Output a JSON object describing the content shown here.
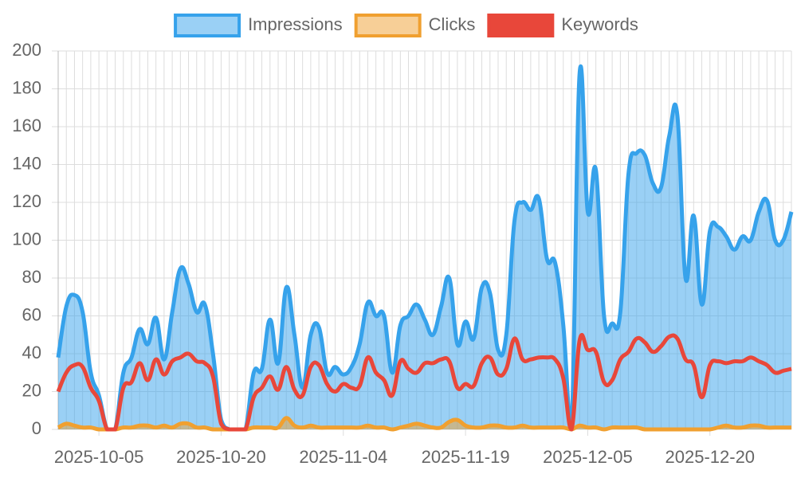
{
  "chart_data": {
    "type": "line",
    "categories": [
      null,
      null,
      null,
      null,
      null,
      "2025-10-05",
      null,
      null,
      null,
      null,
      null,
      null,
      null,
      null,
      null,
      null,
      null,
      null,
      null,
      null,
      "2025-10-20",
      null,
      null,
      null,
      null,
      null,
      null,
      null,
      null,
      null,
      null,
      null,
      null,
      null,
      null,
      "2025-11-04",
      null,
      null,
      null,
      null,
      null,
      null,
      null,
      null,
      null,
      null,
      null,
      null,
      null,
      null,
      "2025-11-19",
      null,
      null,
      null,
      null,
      null,
      null,
      null,
      null,
      null,
      null,
      null,
      null,
      null,
      null,
      "2025-12-05",
      null,
      null,
      null,
      null,
      null,
      null,
      null,
      null,
      null,
      null,
      null,
      null,
      null,
      null,
      "2025-12-20",
      null,
      null,
      null,
      null,
      null,
      null,
      null,
      null,
      null,
      null
    ],
    "series": [
      {
        "name": "Impressions",
        "color": "#36a2eb",
        "fill": true,
        "values": [
          38,
          65,
          71,
          62,
          30,
          18,
          0,
          0,
          30,
          38,
          53,
          45,
          59,
          37,
          62,
          85,
          77,
          62,
          66,
          40,
          5,
          0,
          0,
          0,
          30,
          32,
          58,
          35,
          75,
          50,
          22,
          50,
          54,
          30,
          33,
          29,
          33,
          45,
          67,
          60,
          60,
          30,
          55,
          60,
          66,
          58,
          50,
          65,
          80,
          45,
          57,
          48,
          75,
          72,
          42,
          50,
          110,
          120,
          116,
          122,
          90,
          88,
          55,
          0,
          188,
          115,
          137,
          60,
          56,
          62,
          135,
          146,
          145,
          130,
          128,
          155,
          166,
          80,
          113,
          66,
          105,
          107,
          102,
          95,
          102,
          100,
          115,
          121,
          100,
          100,
          115
        ]
      },
      {
        "name": "Clicks",
        "color": "#f0a030",
        "fill": true,
        "values": [
          1,
          3,
          2,
          1,
          1,
          0,
          0,
          0,
          1,
          1,
          2,
          2,
          1,
          2,
          1,
          3,
          3,
          1,
          1,
          0,
          0,
          0,
          0,
          0,
          1,
          1,
          1,
          1,
          6,
          2,
          1,
          2,
          1,
          1,
          1,
          1,
          1,
          1,
          2,
          1,
          1,
          0,
          1,
          2,
          3,
          2,
          1,
          1,
          4,
          5,
          2,
          1,
          1,
          2,
          2,
          1,
          1,
          2,
          1,
          1,
          1,
          1,
          1,
          0,
          2,
          1,
          1,
          0,
          1,
          1,
          1,
          1,
          0,
          0,
          0,
          0,
          0,
          0,
          0,
          0,
          0,
          1,
          2,
          1,
          1,
          2,
          2,
          1,
          1,
          1,
          1
        ]
      },
      {
        "name": "Keywords",
        "color": "#e8473a",
        "fill": false,
        "values": [
          20,
          30,
          34,
          33,
          22,
          15,
          0,
          0,
          22,
          25,
          35,
          26,
          37,
          29,
          36,
          38,
          40,
          36,
          35,
          28,
          3,
          0,
          0,
          0,
          17,
          22,
          28,
          21,
          33,
          21,
          18,
          33,
          34,
          24,
          20,
          24,
          22,
          23,
          38,
          30,
          26,
          18,
          36,
          32,
          30,
          35,
          35,
          37,
          36,
          22,
          24,
          23,
          35,
          38,
          29,
          32,
          48,
          37,
          37,
          38,
          38,
          37,
          27,
          0,
          47,
          42,
          41,
          25,
          26,
          37,
          41,
          48,
          46,
          41,
          44,
          49,
          48,
          37,
          34,
          17,
          34,
          36,
          35,
          36,
          36,
          38,
          36,
          34,
          30,
          31,
          32
        ]
      }
    ],
    "ylim": [
      0,
      200
    ],
    "yticks": [
      0,
      20,
      40,
      60,
      80,
      100,
      120,
      140,
      160,
      180,
      200
    ],
    "grid": true,
    "legend": "top"
  }
}
